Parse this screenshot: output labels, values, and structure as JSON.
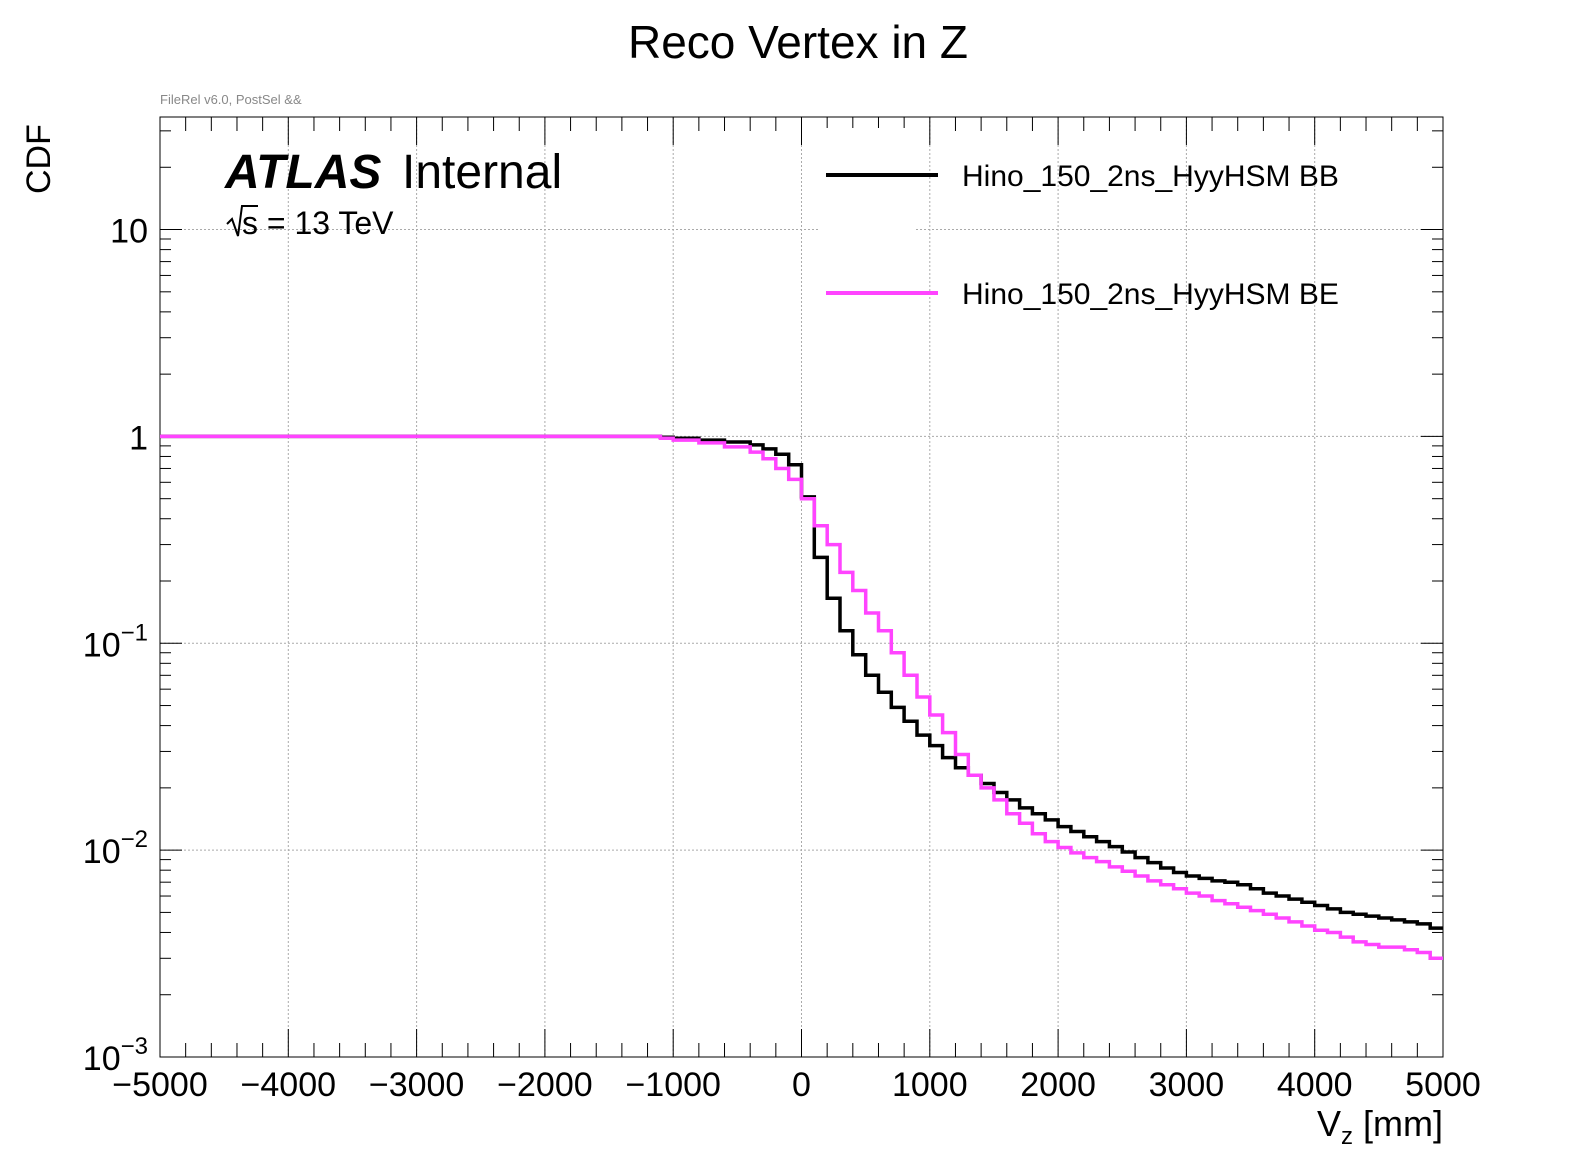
{
  "note": "FileRel v6.0, PostSel &&",
  "atlas": {
    "brand": "ATLAS",
    "label": "Internal",
    "energy": "s = 13 TeV"
  },
  "chart_data": {
    "type": "line",
    "title": "Reco Vertex in Z",
    "xlabel": "V",
    "xlabel_sub": "z",
    "xlabel_unit": " [mm]",
    "ylabel": "CDF",
    "xlim": [
      -5000,
      5000
    ],
    "ylim": [
      0.001,
      35
    ],
    "yscale": "log",
    "grid": true,
    "legend_position": "top-right",
    "x_ticks": [
      -5000,
      -4000,
      -3000,
      -2000,
      -1000,
      0,
      1000,
      2000,
      3000,
      4000,
      5000
    ],
    "x_tick_labels": [
      "−5000",
      "−4000",
      "−3000",
      "−2000",
      "−1000",
      "0",
      "1000",
      "2000",
      "3000",
      "4000",
      "5000"
    ],
    "y_ticks": [
      {
        "value": 10,
        "base": "10",
        "exp": ""
      },
      {
        "value": 1,
        "base": "1",
        "exp": ""
      },
      {
        "value": 0.1,
        "base": "10",
        "exp": "−1"
      },
      {
        "value": 0.01,
        "base": "10",
        "exp": "−2"
      },
      {
        "value": 0.001,
        "base": "10",
        "exp": "−3"
      }
    ],
    "series": [
      {
        "name": "Hino_150_2ns_HyyHSM  BB",
        "color": "#000000",
        "x": [
          -5000,
          -1500,
          -1100,
          -1000,
          -800,
          -600,
          -400,
          -300,
          -200,
          -100,
          0,
          100,
          200,
          300,
          400,
          500,
          600,
          700,
          800,
          900,
          1000,
          1100,
          1200,
          1300,
          1400,
          1500,
          1600,
          1700,
          1800,
          1900,
          2000,
          2100,
          2200,
          2300,
          2400,
          2500,
          2600,
          2700,
          2800,
          2900,
          3000,
          3100,
          3200,
          3300,
          3400,
          3500,
          3600,
          3700,
          3800,
          3900,
          4000,
          4100,
          4200,
          4300,
          4400,
          4500,
          4600,
          4700,
          4800,
          4900
        ],
        "values": [
          1.0,
          1.0,
          0.99,
          0.98,
          0.96,
          0.94,
          0.91,
          0.87,
          0.82,
          0.73,
          0.51,
          0.26,
          0.165,
          0.115,
          0.088,
          0.07,
          0.058,
          0.049,
          0.042,
          0.036,
          0.032,
          0.028,
          0.025,
          0.023,
          0.021,
          0.019,
          0.0175,
          0.016,
          0.015,
          0.014,
          0.013,
          0.0123,
          0.0116,
          0.011,
          0.0104,
          0.0098,
          0.0092,
          0.0087,
          0.0082,
          0.0078,
          0.0075,
          0.0073,
          0.0071,
          0.007,
          0.0068,
          0.0065,
          0.0062,
          0.006,
          0.0058,
          0.0056,
          0.0054,
          0.0052,
          0.005,
          0.0049,
          0.0048,
          0.0047,
          0.0046,
          0.0045,
          0.0044,
          0.0042
        ]
      },
      {
        "name": "Hino_150_2ns_HyyHSM  BE",
        "color": "#ff44ff",
        "x": [
          -5000,
          -1500,
          -1100,
          -1000,
          -800,
          -600,
          -400,
          -300,
          -200,
          -100,
          0,
          100,
          200,
          300,
          400,
          500,
          600,
          700,
          800,
          900,
          1000,
          1100,
          1200,
          1300,
          1400,
          1500,
          1600,
          1700,
          1800,
          1900,
          2000,
          2100,
          2200,
          2300,
          2400,
          2500,
          2600,
          2700,
          2800,
          2900,
          3000,
          3100,
          3200,
          3300,
          3400,
          3500,
          3600,
          3700,
          3800,
          3900,
          4000,
          4100,
          4200,
          4300,
          4400,
          4500,
          4600,
          4700,
          4800,
          4900
        ],
        "values": [
          1.0,
          1.0,
          0.98,
          0.96,
          0.93,
          0.89,
          0.84,
          0.78,
          0.7,
          0.62,
          0.5,
          0.37,
          0.3,
          0.22,
          0.18,
          0.14,
          0.115,
          0.09,
          0.07,
          0.055,
          0.045,
          0.037,
          0.029,
          0.023,
          0.02,
          0.0175,
          0.015,
          0.0135,
          0.012,
          0.011,
          0.0103,
          0.0097,
          0.0092,
          0.0088,
          0.0083,
          0.0079,
          0.0075,
          0.0071,
          0.0068,
          0.0065,
          0.0062,
          0.006,
          0.0057,
          0.0055,
          0.0053,
          0.0051,
          0.0049,
          0.0047,
          0.0045,
          0.0043,
          0.0041,
          0.004,
          0.0038,
          0.0036,
          0.0035,
          0.0034,
          0.0034,
          0.0033,
          0.0032,
          0.003
        ]
      }
    ]
  }
}
